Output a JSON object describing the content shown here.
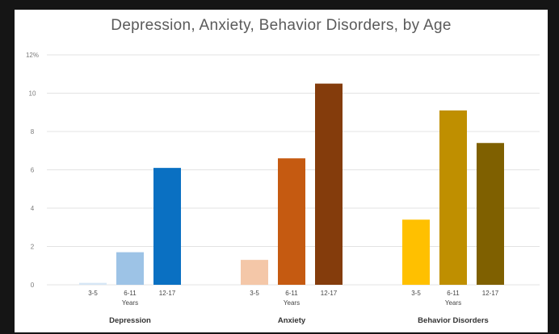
{
  "chart_data": {
    "type": "bar",
    "title": "Depression, Anxiety, Behavior Disorders, by Age",
    "ylim": [
      0,
      12
    ],
    "yticks": [
      "0",
      "2",
      "4",
      "6",
      "8",
      "10",
      "12%"
    ],
    "grid": true,
    "age_group_label": "Years",
    "groups": [
      {
        "name": "Depression",
        "categories": [
          "3-5",
          "6-11",
          "12-17"
        ],
        "values": [
          0.1,
          1.7,
          6.1
        ],
        "colors": [
          "#d6e6f5",
          "#9dc3e6",
          "#0a70c2"
        ]
      },
      {
        "name": "Anxiety",
        "categories": [
          "3-5",
          "6-11",
          "12-17"
        ],
        "values": [
          1.3,
          6.6,
          10.5
        ],
        "colors": [
          "#f4c7a8",
          "#c55a11",
          "#843c0c"
        ]
      },
      {
        "name": "Behavior Disorders",
        "categories": [
          "3-5",
          "6-11",
          "12-17"
        ],
        "values": [
          3.4,
          9.1,
          7.4
        ],
        "colors": [
          "#ffc000",
          "#bf8f00",
          "#7f6000"
        ]
      }
    ]
  }
}
